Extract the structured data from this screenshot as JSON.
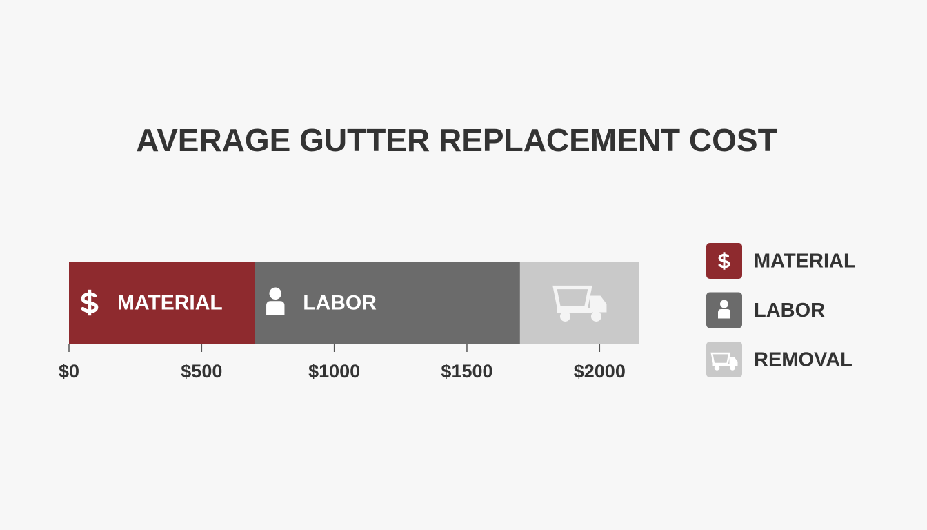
{
  "chart_data": {
    "type": "stacked-bar",
    "title": "AVERAGE GUTTER REPLACEMENT COST",
    "categories": [
      null
    ],
    "series": [
      {
        "name": "MATERIAL",
        "color": "#8e2a2e",
        "values": [
          700
        ]
      },
      {
        "name": "LABOR",
        "color": "#6b6b6b",
        "values": [
          1000
        ]
      },
      {
        "name": "REMOVAL",
        "color": "#c9c9c9",
        "values": [
          450
        ]
      }
    ],
    "xlim": [
      0,
      2150
    ],
    "xticks": [
      {
        "value": 0,
        "label": "$0"
      },
      {
        "value": 500,
        "label": "$500"
      },
      {
        "value": 1000,
        "label": "$1000"
      },
      {
        "value": 1500,
        "label": "$1500"
      },
      {
        "value": 2000,
        "label": "$2000"
      }
    ],
    "legend": "right"
  }
}
